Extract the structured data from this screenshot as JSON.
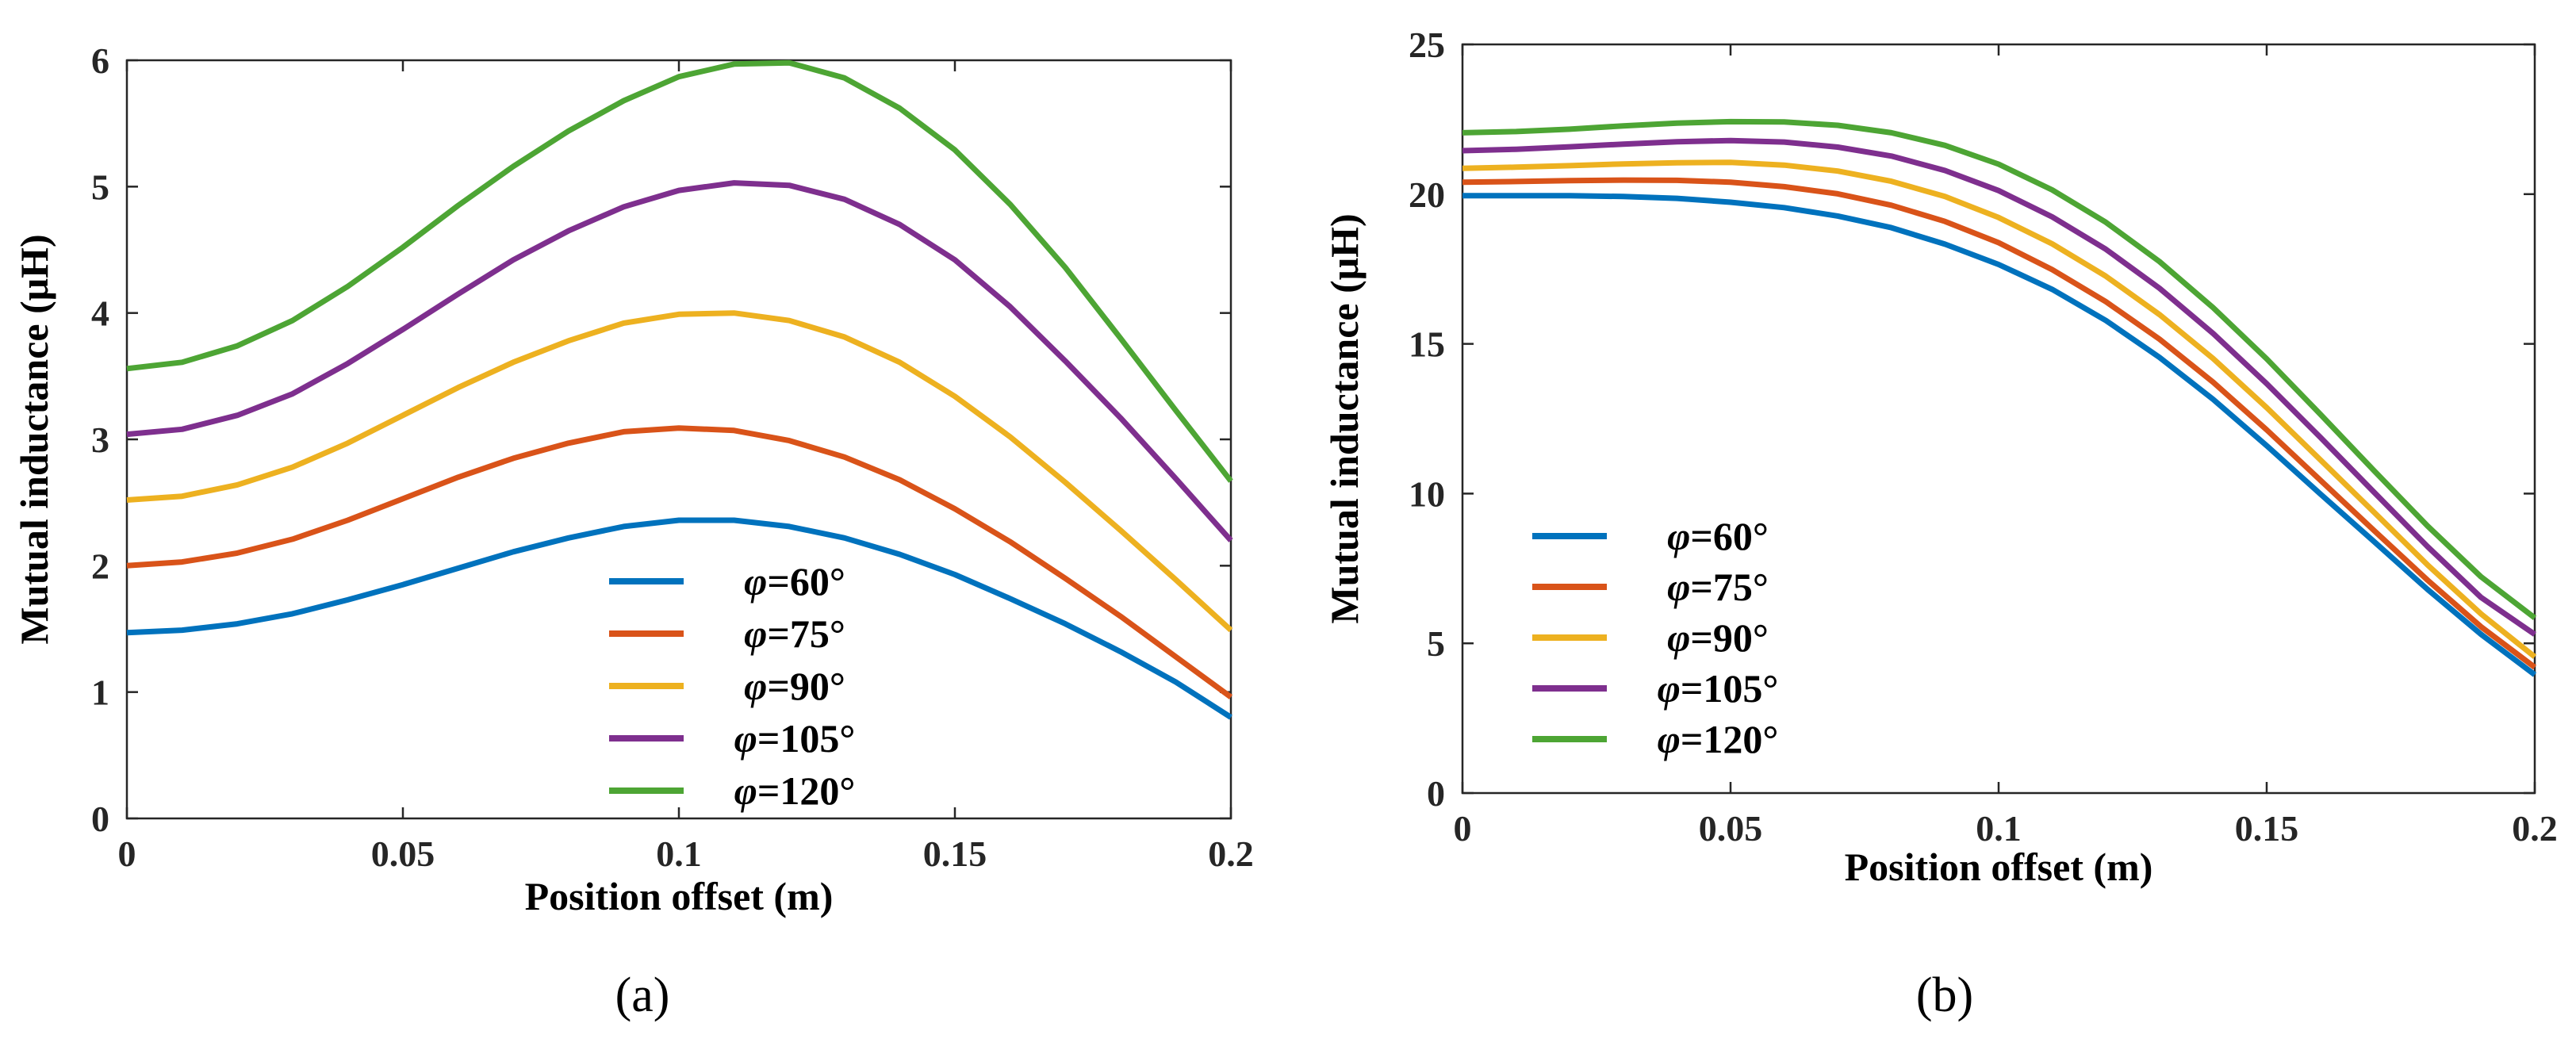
{
  "chart_data": [
    {
      "type": "line",
      "caption": "(a)",
      "xlabel": "Position offset (m)",
      "ylabel": "Mutual inductance (μH)",
      "xlim": [
        0,
        0.2
      ],
      "ylim": [
        0,
        6
      ],
      "xticks": [
        0,
        0.05,
        0.1,
        0.15,
        0.2
      ],
      "xtick_labels": [
        "0",
        "0.05",
        "0.1",
        "0.15",
        "0.2"
      ],
      "yticks": [
        0,
        1,
        2,
        3,
        4,
        5,
        6
      ],
      "ytick_labels": [
        "0",
        "1",
        "2",
        "3",
        "4",
        "5",
        "6"
      ],
      "grid": false,
      "legend_position": "bottom-center",
      "x": [
        0,
        0.01,
        0.02,
        0.03,
        0.04,
        0.05,
        0.06,
        0.07,
        0.08,
        0.09,
        0.1,
        0.11,
        0.12,
        0.13,
        0.14,
        0.15,
        0.16,
        0.17,
        0.18,
        0.19,
        0.2
      ],
      "series": [
        {
          "name": "φ=60°",
          "symbol": "φ",
          "label_rest": "=60°",
          "color": "#0072BD",
          "values": [
            1.47,
            1.49,
            1.54,
            1.62,
            1.73,
            1.85,
            1.98,
            2.11,
            2.22,
            2.31,
            2.36,
            2.36,
            2.31,
            2.22,
            2.09,
            1.93,
            1.74,
            1.54,
            1.32,
            1.08,
            0.8
          ]
        },
        {
          "name": "φ=75°",
          "symbol": "φ",
          "label_rest": "=75°",
          "color": "#D95319",
          "values": [
            2.0,
            2.03,
            2.1,
            2.21,
            2.36,
            2.53,
            2.7,
            2.85,
            2.97,
            3.06,
            3.09,
            3.07,
            2.99,
            2.86,
            2.68,
            2.45,
            2.19,
            1.9,
            1.6,
            1.28,
            0.96
          ]
        },
        {
          "name": "φ=90°",
          "symbol": "φ",
          "label_rest": "=90°",
          "color": "#EDB120",
          "values": [
            2.52,
            2.55,
            2.64,
            2.78,
            2.97,
            3.19,
            3.41,
            3.61,
            3.78,
            3.92,
            3.99,
            4.0,
            3.94,
            3.81,
            3.61,
            3.34,
            3.02,
            2.66,
            2.28,
            1.89,
            1.49
          ]
        },
        {
          "name": "φ=105°",
          "symbol": "φ",
          "label_rest": "=105°",
          "color": "#7E2F8E",
          "values": [
            3.04,
            3.08,
            3.19,
            3.36,
            3.6,
            3.87,
            4.15,
            4.42,
            4.65,
            4.84,
            4.97,
            5.03,
            5.01,
            4.9,
            4.7,
            4.42,
            4.05,
            3.62,
            3.17,
            2.69,
            2.2
          ]
        },
        {
          "name": "φ=120°",
          "symbol": "φ",
          "label_rest": "=120°",
          "color": "#4DA534",
          "values": [
            3.56,
            3.61,
            3.74,
            3.94,
            4.21,
            4.52,
            4.85,
            5.16,
            5.44,
            5.68,
            5.87,
            5.97,
            5.98,
            5.86,
            5.62,
            5.29,
            4.86,
            4.36,
            3.8,
            3.23,
            2.67
          ]
        }
      ]
    },
    {
      "type": "line",
      "caption": "(b)",
      "xlabel": "Position offset (m)",
      "ylabel": "Mutual inductance (μH)",
      "xlim": [
        0,
        0.2
      ],
      "ylim": [
        0,
        25
      ],
      "xticks": [
        0,
        0.05,
        0.1,
        0.15,
        0.2
      ],
      "xtick_labels": [
        "0",
        "0.05",
        "0.1",
        "0.15",
        "0.2"
      ],
      "yticks": [
        0,
        5,
        10,
        15,
        20,
        25
      ],
      "ytick_labels": [
        "0",
        "5",
        "10",
        "15",
        "20",
        "25"
      ],
      "grid": false,
      "legend_position": "bottom-left",
      "x": [
        0,
        0.01,
        0.02,
        0.03,
        0.04,
        0.05,
        0.06,
        0.07,
        0.08,
        0.09,
        0.1,
        0.11,
        0.12,
        0.13,
        0.14,
        0.15,
        0.16,
        0.17,
        0.18,
        0.19,
        0.2
      ],
      "series": [
        {
          "name": "φ=60°",
          "symbol": "φ",
          "label_rest": "=60°",
          "color": "#0072BD",
          "values": [
            19.95,
            19.95,
            19.95,
            19.92,
            19.86,
            19.73,
            19.55,
            19.27,
            18.88,
            18.33,
            17.65,
            16.82,
            15.78,
            14.55,
            13.15,
            11.6,
            9.99,
            8.4,
            6.8,
            5.3,
            3.95
          ]
        },
        {
          "name": "φ=75°",
          "symbol": "φ",
          "label_rest": "=75°",
          "color": "#D95319",
          "values": [
            20.4,
            20.42,
            20.45,
            20.47,
            20.46,
            20.4,
            20.25,
            20.01,
            19.63,
            19.09,
            18.38,
            17.48,
            16.41,
            15.16,
            13.72,
            12.13,
            10.45,
            8.77,
            7.11,
            5.55,
            4.2
          ]
        },
        {
          "name": "φ=90°",
          "symbol": "φ",
          "label_rest": "=90°",
          "color": "#EDB120",
          "values": [
            20.86,
            20.9,
            20.95,
            21.01,
            21.05,
            21.06,
            20.97,
            20.77,
            20.43,
            19.92,
            19.22,
            18.34,
            17.26,
            15.98,
            14.51,
            12.87,
            11.13,
            9.38,
            7.62,
            5.98,
            4.55
          ]
        },
        {
          "name": "φ=105°",
          "symbol": "φ",
          "label_rest": "=105°",
          "color": "#7E2F8E",
          "values": [
            21.45,
            21.5,
            21.58,
            21.67,
            21.75,
            21.79,
            21.74,
            21.57,
            21.27,
            20.79,
            20.12,
            19.24,
            18.16,
            16.86,
            15.35,
            13.67,
            11.88,
            10.05,
            8.23,
            6.53,
            5.3
          ]
        },
        {
          "name": "φ=120°",
          "symbol": "φ",
          "label_rest": "=120°",
          "color": "#4DA534",
          "values": [
            22.05,
            22.09,
            22.17,
            22.28,
            22.37,
            22.42,
            22.41,
            22.3,
            22.05,
            21.63,
            21.0,
            20.14,
            19.06,
            17.75,
            16.21,
            14.5,
            12.65,
            10.77,
            8.92,
            7.22,
            5.85
          ]
        }
      ]
    }
  ]
}
